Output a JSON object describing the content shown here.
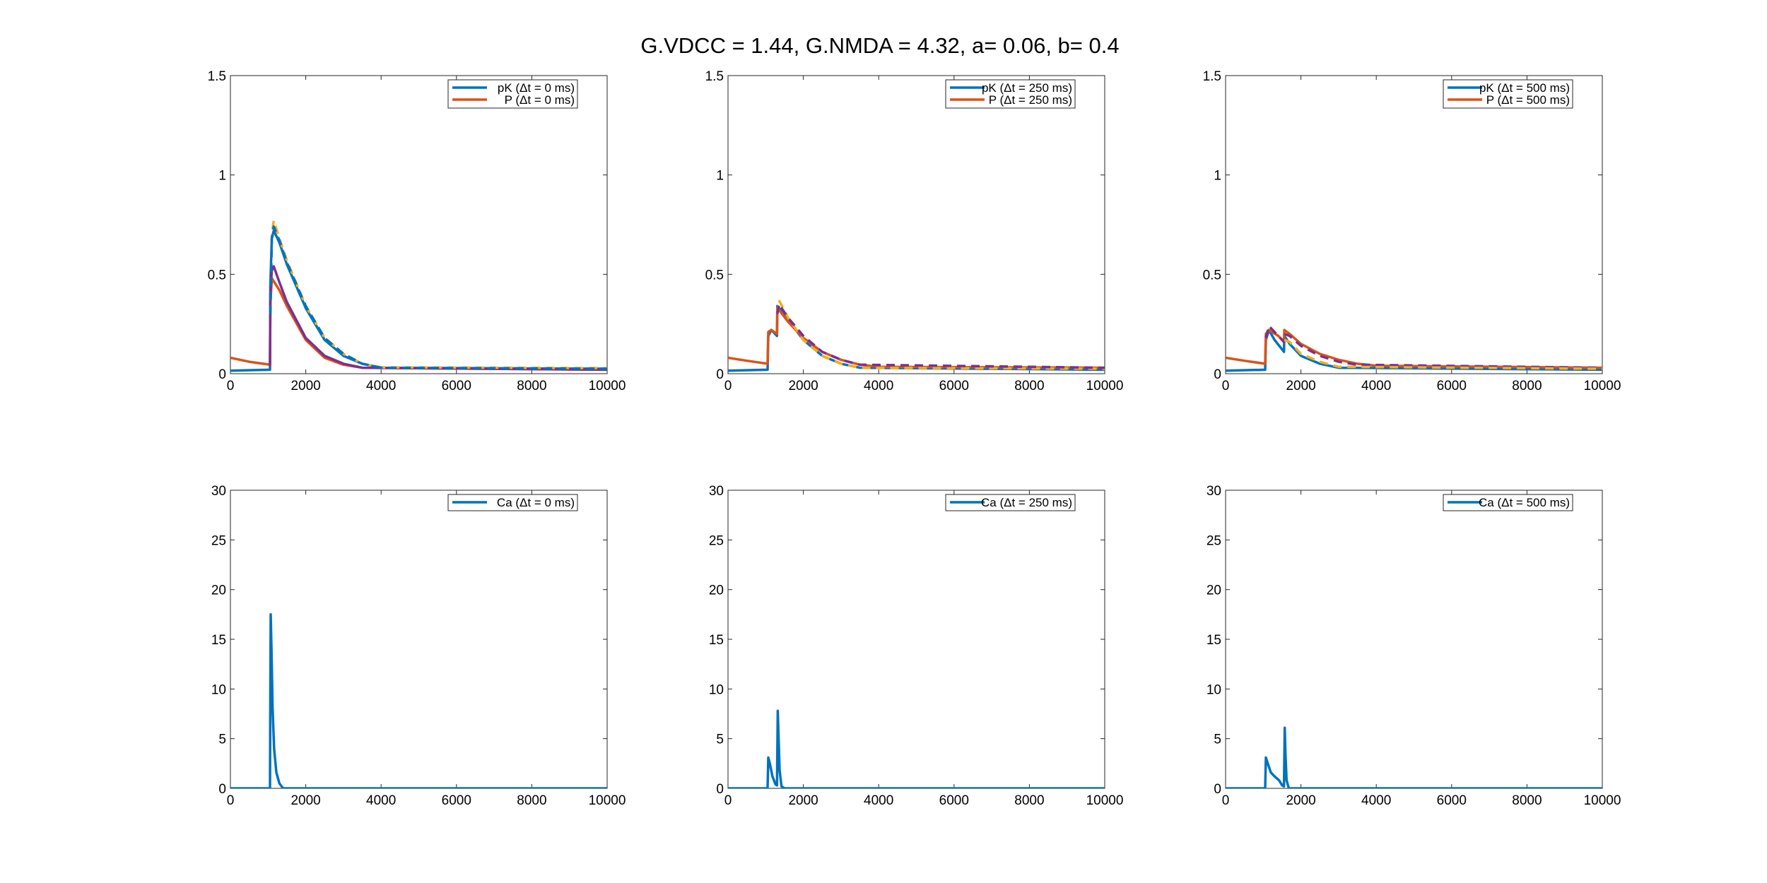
{
  "figure": {
    "title": "G.VDCC = 1.44, G.NMDA = 4.32, a= 0.06, b= 0.4"
  },
  "colors": {
    "blue": "#0072BD",
    "orange": "#D95319",
    "yellow": "#EDB120",
    "purple": "#7E2F8E",
    "axis": "#262626"
  },
  "chart_data": [
    {
      "type": "line",
      "panel": "top-left",
      "xlim": [
        0,
        10000
      ],
      "ylim": [
        0,
        1.5
      ],
      "xticks": [
        "0",
        "2000",
        "4000",
        "6000",
        "8000",
        "10000"
      ],
      "yticks": [
        "0",
        "0.5",
        "1",
        "1.5"
      ],
      "legend_position": "top-right",
      "series": [
        {
          "name": "pK (Δt = 0 ms)",
          "color": "blue",
          "dash": false,
          "legend": true,
          "points": [
            [
              0,
              0.015
            ],
            [
              1050,
              0.02
            ],
            [
              1060,
              0.45
            ],
            [
              1100,
              0.68
            ],
            [
              1150,
              0.72
            ],
            [
              1300,
              0.66
            ],
            [
              1500,
              0.55
            ],
            [
              2000,
              0.33
            ],
            [
              2500,
              0.17
            ],
            [
              3000,
              0.09
            ],
            [
              3500,
              0.05
            ],
            [
              4000,
              0.03
            ],
            [
              10000,
              0.025
            ]
          ]
        },
        {
          "name": "P (Δt = 0 ms)",
          "color": "orange",
          "dash": false,
          "legend": true,
          "points": [
            [
              0,
              0.08
            ],
            [
              500,
              0.06
            ],
            [
              1050,
              0.045
            ],
            [
              1060,
              0.35
            ],
            [
              1100,
              0.48
            ],
            [
              1300,
              0.42
            ],
            [
              1500,
              0.34
            ],
            [
              2000,
              0.17
            ],
            [
              2500,
              0.08
            ],
            [
              3000,
              0.045
            ],
            [
              3500,
              0.03
            ],
            [
              10000,
              0.02
            ]
          ]
        },
        {
          "name": "",
          "color": "purple",
          "dash": false,
          "legend": false,
          "points": [
            [
              1050,
              0.04
            ],
            [
              1060,
              0.4
            ],
            [
              1100,
              0.52
            ],
            [
              1150,
              0.54
            ],
            [
              1300,
              0.46
            ],
            [
              1500,
              0.36
            ],
            [
              2000,
              0.18
            ],
            [
              2500,
              0.09
            ],
            [
              3000,
              0.05
            ],
            [
              3500,
              0.03
            ],
            [
              10000,
              0.02
            ]
          ]
        },
        {
          "name": "",
          "color": "yellow",
          "dash": true,
          "legend": false,
          "points": [
            [
              1060,
              0.3
            ],
            [
              1100,
              0.7
            ],
            [
              1150,
              0.77
            ],
            [
              1300,
              0.68
            ],
            [
              1500,
              0.57
            ],
            [
              2000,
              0.34
            ],
            [
              2500,
              0.18
            ],
            [
              3000,
              0.1
            ],
            [
              3500,
              0.05
            ],
            [
              4000,
              0.032
            ],
            [
              10000,
              0.028
            ]
          ]
        },
        {
          "name": "",
          "color": "blue",
          "dash": true,
          "legend": false,
          "points": [
            [
              1060,
              0.3
            ],
            [
              1100,
              0.68
            ],
            [
              1150,
              0.74
            ],
            [
              1300,
              0.67
            ],
            [
              1500,
              0.56
            ],
            [
              2000,
              0.34
            ],
            [
              2500,
              0.18
            ],
            [
              3000,
              0.1
            ],
            [
              3500,
              0.05
            ],
            [
              4000,
              0.03
            ],
            [
              10000,
              0.025
            ]
          ]
        }
      ]
    },
    {
      "type": "line",
      "panel": "top-middle",
      "xlim": [
        0,
        10000
      ],
      "ylim": [
        0,
        1.5
      ],
      "xticks": [
        "0",
        "2000",
        "4000",
        "6000",
        "8000",
        "10000"
      ],
      "yticks": [
        "0",
        "0.5",
        "1",
        "1.5"
      ],
      "legend_position": "top-right",
      "series": [
        {
          "name": "pK (Δt = 250 ms)",
          "color": "blue",
          "dash": false,
          "legend": true,
          "points": [
            [
              0,
              0.015
            ],
            [
              1050,
              0.02
            ],
            [
              1070,
              0.19
            ],
            [
              1150,
              0.22
            ],
            [
              1300,
              0.19
            ],
            [
              1310,
              0.34
            ],
            [
              1360,
              0.33
            ],
            [
              1600,
              0.27
            ],
            [
              2000,
              0.17
            ],
            [
              2500,
              0.09
            ],
            [
              3000,
              0.05
            ],
            [
              3500,
              0.03
            ],
            [
              10000,
              0.02
            ]
          ]
        },
        {
          "name": "P (Δt = 250 ms)",
          "color": "orange",
          "dash": false,
          "legend": true,
          "points": [
            [
              0,
              0.08
            ],
            [
              500,
              0.065
            ],
            [
              1050,
              0.05
            ],
            [
              1070,
              0.21
            ],
            [
              1150,
              0.22
            ],
            [
              1300,
              0.2
            ],
            [
              1310,
              0.33
            ],
            [
              1400,
              0.31
            ],
            [
              1600,
              0.26
            ],
            [
              2000,
              0.18
            ],
            [
              2500,
              0.11
            ],
            [
              3000,
              0.07
            ],
            [
              3500,
              0.045
            ],
            [
              4000,
              0.035
            ],
            [
              10000,
              0.03
            ]
          ]
        },
        {
          "name": "",
          "color": "yellow",
          "dash": true,
          "legend": false,
          "points": [
            [
              1310,
              0.3
            ],
            [
              1350,
              0.37
            ],
            [
              1600,
              0.28
            ],
            [
              2000,
              0.17
            ],
            [
              2500,
              0.09
            ],
            [
              3000,
              0.05
            ],
            [
              3500,
              0.03
            ],
            [
              10000,
              0.025
            ]
          ]
        },
        {
          "name": "",
          "color": "purple",
          "dash": true,
          "legend": false,
          "points": [
            [
              1310,
              0.3
            ],
            [
              1350,
              0.35
            ],
            [
              1600,
              0.28
            ],
            [
              2000,
              0.19
            ],
            [
              2500,
              0.11
            ],
            [
              3000,
              0.07
            ],
            [
              3500,
              0.045
            ],
            [
              10000,
              0.03
            ]
          ]
        }
      ]
    },
    {
      "type": "line",
      "panel": "top-right",
      "xlim": [
        0,
        10000
      ],
      "ylim": [
        0,
        1.5
      ],
      "xticks": [
        "0",
        "2000",
        "4000",
        "6000",
        "8000",
        "10000"
      ],
      "yticks": [
        "0",
        "0.5",
        "1",
        "1.5"
      ],
      "legend_position": "top-right",
      "series": [
        {
          "name": "pK (Δt = 500 ms)",
          "color": "blue",
          "dash": false,
          "legend": true,
          "points": [
            [
              0,
              0.015
            ],
            [
              1050,
              0.02
            ],
            [
              1070,
              0.17
            ],
            [
              1150,
              0.22
            ],
            [
              1300,
              0.17
            ],
            [
              1550,
              0.11
            ],
            [
              1560,
              0.19
            ],
            [
              1700,
              0.15
            ],
            [
              2000,
              0.09
            ],
            [
              2500,
              0.05
            ],
            [
              3000,
              0.03
            ],
            [
              10000,
              0.02
            ]
          ]
        },
        {
          "name": "P (Δt = 500 ms)",
          "color": "orange",
          "dash": false,
          "legend": true,
          "points": [
            [
              0,
              0.08
            ],
            [
              500,
              0.065
            ],
            [
              1050,
              0.05
            ],
            [
              1070,
              0.2
            ],
            [
              1150,
              0.22
            ],
            [
              1400,
              0.19
            ],
            [
              1550,
              0.16
            ],
            [
              1560,
              0.22
            ],
            [
              1700,
              0.2
            ],
            [
              2000,
              0.15
            ],
            [
              2500,
              0.1
            ],
            [
              3000,
              0.07
            ],
            [
              3500,
              0.05
            ],
            [
              4000,
              0.04
            ],
            [
              10000,
              0.03
            ]
          ]
        },
        {
          "name": "",
          "color": "purple",
          "dash": true,
          "legend": false,
          "points": [
            [
              1070,
              0.18
            ],
            [
              1150,
              0.24
            ],
            [
              1400,
              0.19
            ],
            [
              1550,
              0.16
            ],
            [
              1560,
              0.2
            ],
            [
              1700,
              0.19
            ],
            [
              2000,
              0.14
            ],
            [
              2500,
              0.09
            ],
            [
              3000,
              0.06
            ],
            [
              3500,
              0.045
            ],
            [
              10000,
              0.03
            ]
          ]
        },
        {
          "name": "",
          "color": "yellow",
          "dash": true,
          "legend": false,
          "points": [
            [
              1560,
              0.17
            ],
            [
              1700,
              0.16
            ],
            [
              2000,
              0.1
            ],
            [
              2500,
              0.06
            ],
            [
              3000,
              0.035
            ],
            [
              10000,
              0.025
            ]
          ]
        }
      ]
    },
    {
      "type": "line",
      "panel": "bottom-left",
      "xlim": [
        0,
        10000
      ],
      "ylim": [
        0,
        30
      ],
      "xticks": [
        "0",
        "2000",
        "4000",
        "6000",
        "8000",
        "10000"
      ],
      "yticks": [
        "0",
        "5",
        "10",
        "15",
        "20",
        "25",
        "30"
      ],
      "legend_position": "top-right",
      "series": [
        {
          "name": "Ca (Δt = 0 ms)",
          "color": "blue",
          "dash": false,
          "legend": true,
          "points": [
            [
              0,
              0
            ],
            [
              1050,
              0
            ],
            [
              1060,
              10
            ],
            [
              1070,
              17.5
            ],
            [
              1090,
              14
            ],
            [
              1120,
              8
            ],
            [
              1160,
              4
            ],
            [
              1220,
              1.6
            ],
            [
              1300,
              0.5
            ],
            [
              1400,
              0
            ],
            [
              10000,
              0
            ]
          ]
        }
      ]
    },
    {
      "type": "line",
      "panel": "bottom-middle",
      "xlim": [
        0,
        10000
      ],
      "ylim": [
        0,
        30
      ],
      "xticks": [
        "0",
        "2000",
        "4000",
        "6000",
        "8000",
        "10000"
      ],
      "yticks": [
        "0",
        "5",
        "10",
        "15",
        "20",
        "25",
        "30"
      ],
      "legend_position": "top-right",
      "series": [
        {
          "name": "Ca (Δt = 250 ms)",
          "color": "blue",
          "dash": false,
          "legend": true,
          "points": [
            [
              0,
              0
            ],
            [
              1050,
              0
            ],
            [
              1070,
              3.1
            ],
            [
              1110,
              2.5
            ],
            [
              1180,
              1.2
            ],
            [
              1260,
              0.4
            ],
            [
              1300,
              0.3
            ],
            [
              1320,
              7.8
            ],
            [
              1340,
              5.5
            ],
            [
              1370,
              1.8
            ],
            [
              1420,
              0.2
            ],
            [
              1500,
              0
            ],
            [
              10000,
              0
            ]
          ]
        }
      ]
    },
    {
      "type": "line",
      "panel": "bottom-right",
      "xlim": [
        0,
        10000
      ],
      "ylim": [
        0,
        30
      ],
      "xticks": [
        "0",
        "2000",
        "4000",
        "6000",
        "8000",
        "10000"
      ],
      "yticks": [
        "0",
        "5",
        "10",
        "15",
        "20",
        "25",
        "30"
      ],
      "legend_position": "top-right",
      "series": [
        {
          "name": "Ca (Δt = 500 ms)",
          "color": "blue",
          "dash": false,
          "legend": true,
          "points": [
            [
              0,
              0
            ],
            [
              1050,
              0
            ],
            [
              1070,
              3.1
            ],
            [
              1120,
              2.5
            ],
            [
              1200,
              1.6
            ],
            [
              1300,
              1.2
            ],
            [
              1420,
              0.8
            ],
            [
              1500,
              0.3
            ],
            [
              1550,
              0.2
            ],
            [
              1570,
              6.1
            ],
            [
              1590,
              3.5
            ],
            [
              1620,
              0.8
            ],
            [
              1680,
              0
            ],
            [
              10000,
              0
            ]
          ]
        }
      ]
    }
  ]
}
